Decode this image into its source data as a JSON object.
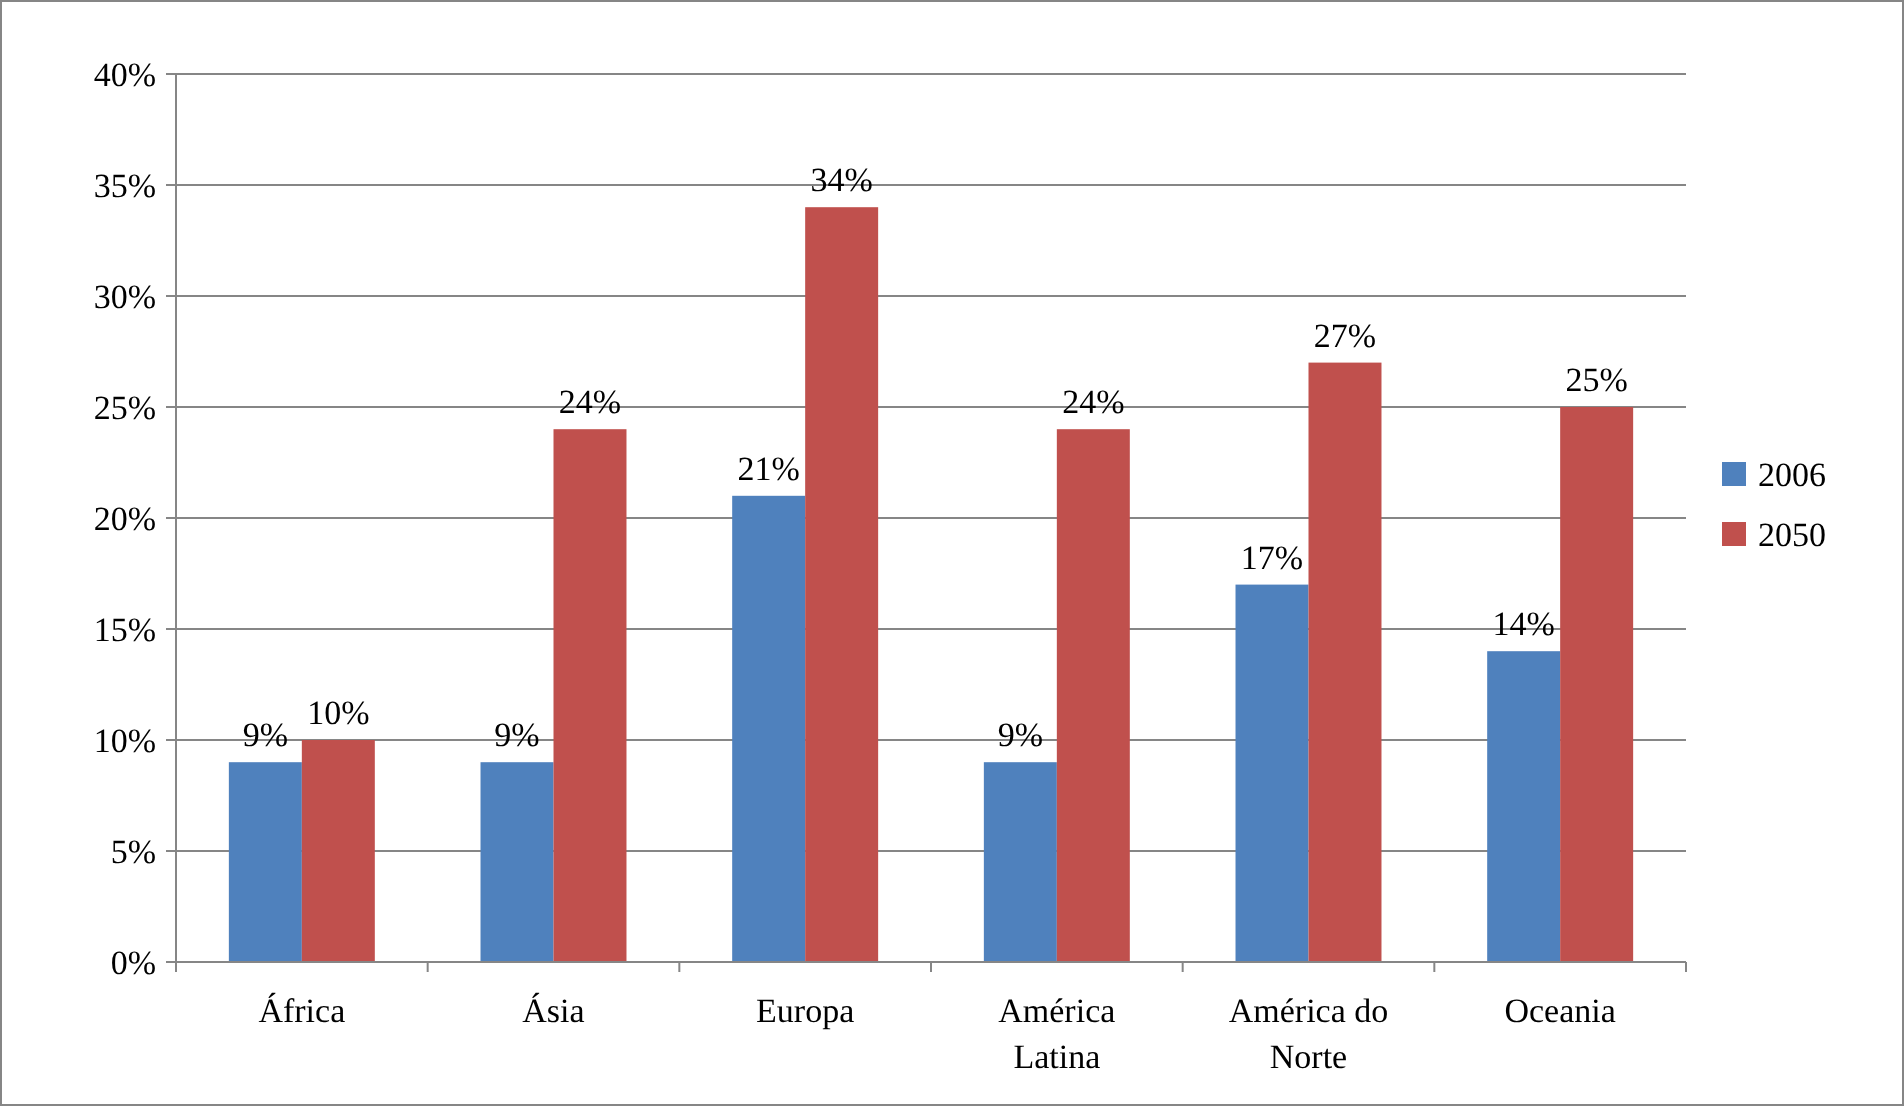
{
  "chart_data": {
    "type": "bar",
    "categories": [
      "África",
      "Ásia",
      "Europa",
      "América Latina",
      "América do Norte",
      "Oceania"
    ],
    "series": [
      {
        "name": "2006",
        "color": "#4f81bd",
        "values": [
          9,
          9,
          21,
          9,
          17,
          14
        ],
        "value_labels": [
          "9%",
          "9%",
          "21%",
          "9%",
          "17%",
          "14%"
        ]
      },
      {
        "name": "2050",
        "color": "#c0504d",
        "values": [
          10,
          24,
          34,
          24,
          27,
          25
        ],
        "value_labels": [
          "10%",
          "24%",
          "34%",
          "24%",
          "27%",
          "25%"
        ]
      }
    ],
    "ylim": [
      0,
      40
    ],
    "yticks": [
      {
        "value": 0,
        "label": "0%"
      },
      {
        "value": 5,
        "label": "5%"
      },
      {
        "value": 10,
        "label": "10%"
      },
      {
        "value": 15,
        "label": "15%"
      },
      {
        "value": 20,
        "label": "20%"
      },
      {
        "value": 25,
        "label": "25%"
      },
      {
        "value": 30,
        "label": "30%"
      },
      {
        "value": 35,
        "label": "35%"
      },
      {
        "value": 40,
        "label": "40%"
      }
    ],
    "grid": "y",
    "legend": "right"
  }
}
